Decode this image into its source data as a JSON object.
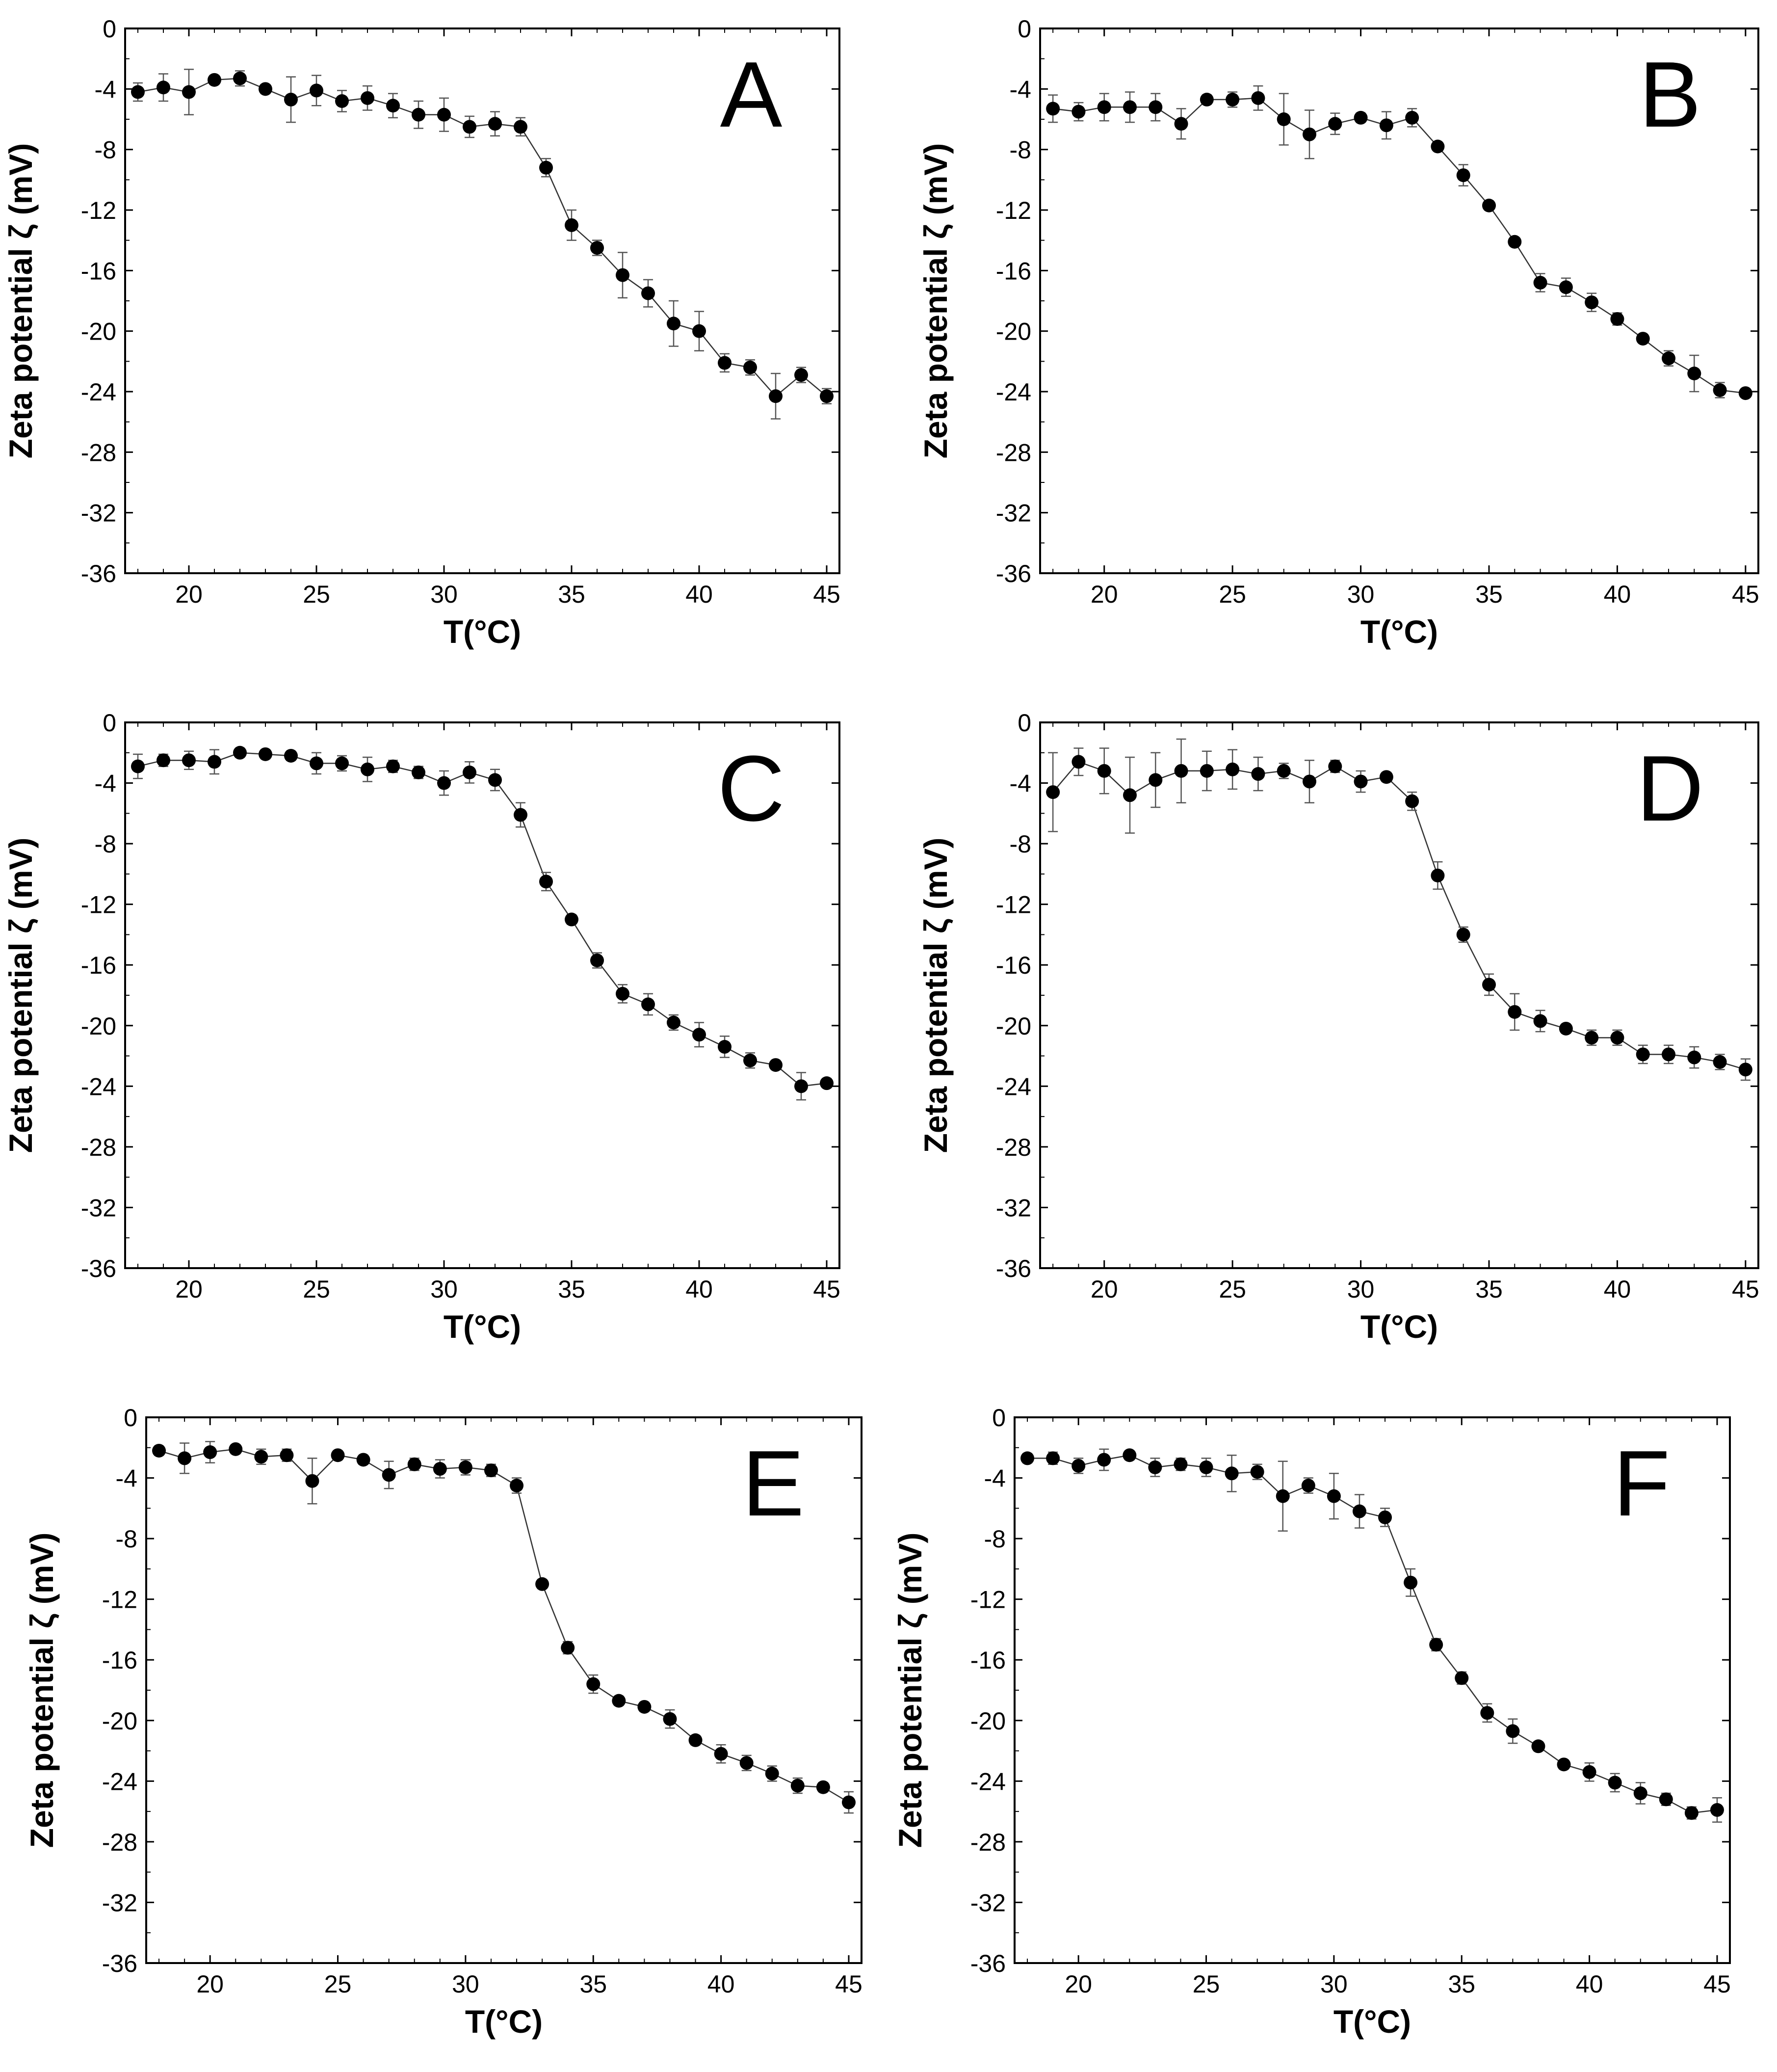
{
  "figure": {
    "description_free": true
  },
  "chart_data": [
    {
      "type": "line",
      "panel": "A",
      "xlabel": "T(°C)",
      "ylabel": "Zeta potential ζ (mV)",
      "xlim": [
        17.5,
        45.5
      ],
      "ylim": [
        -36,
        0
      ],
      "xticks": [
        20,
        25,
        30,
        35,
        40,
        45
      ],
      "yticks": [
        0,
        -4,
        -8,
        -12,
        -16,
        -20,
        -24,
        -28,
        -32,
        -36
      ],
      "x": [
        18,
        19,
        20,
        21,
        22,
        23,
        24,
        25,
        26,
        27,
        28,
        29,
        30,
        31,
        32,
        33,
        34,
        35,
        36,
        37,
        38,
        39,
        40,
        41,
        42,
        43,
        44,
        45
      ],
      "y": [
        -4.2,
        -3.9,
        -4.2,
        -3.4,
        -3.3,
        -4.0,
        -4.7,
        -4.1,
        -4.8,
        -4.6,
        -5.1,
        -5.7,
        -5.7,
        -6.5,
        -6.3,
        -6.5,
        -9.2,
        -13.0,
        -14.5,
        -16.3,
        -17.5,
        -19.5,
        -20.0,
        -22.1,
        -22.4,
        -24.3,
        -22.9,
        -24.3
      ],
      "err": [
        0.6,
        0.9,
        1.5,
        0.3,
        0.5,
        0.3,
        1.5,
        1.0,
        0.7,
        0.8,
        0.8,
        0.9,
        1.1,
        0.7,
        0.8,
        0.6,
        0.6,
        1.0,
        0.5,
        1.5,
        0.9,
        1.5,
        1.3,
        0.6,
        0.5,
        1.5,
        0.5,
        0.5
      ]
    },
    {
      "type": "line",
      "panel": "B",
      "xlabel": "T(°C)",
      "ylabel": "Zeta potential ζ (mV)",
      "xlim": [
        17.5,
        45.5
      ],
      "ylim": [
        -36,
        0
      ],
      "xticks": [
        20,
        25,
        30,
        35,
        40,
        45
      ],
      "yticks": [
        0,
        -4,
        -8,
        -12,
        -16,
        -20,
        -24,
        -28,
        -32,
        -36
      ],
      "x": [
        18,
        19,
        20,
        21,
        22,
        23,
        24,
        25,
        26,
        27,
        28,
        29,
        30,
        31,
        32,
        33,
        34,
        35,
        36,
        37,
        38,
        39,
        40,
        41,
        42,
        43,
        44,
        45
      ],
      "y": [
        -5.3,
        -5.5,
        -5.2,
        -5.2,
        -5.2,
        -6.3,
        -4.7,
        -4.7,
        -4.6,
        -6.0,
        -7.0,
        -6.3,
        -5.9,
        -6.4,
        -5.9,
        -7.8,
        -9.7,
        -11.7,
        -14.1,
        -16.8,
        -17.1,
        -18.1,
        -19.2,
        -20.5,
        -21.8,
        -22.8,
        -23.9,
        -24.1
      ],
      "err": [
        0.9,
        0.6,
        0.9,
        1.0,
        0.9,
        1.0,
        0.3,
        0.5,
        0.8,
        1.7,
        1.6,
        0.7,
        0.3,
        0.9,
        0.6,
        0.2,
        0.7,
        0.3,
        0.2,
        0.6,
        0.6,
        0.6,
        0.4,
        0.2,
        0.5,
        1.2,
        0.5,
        0.2
      ]
    },
    {
      "type": "line",
      "panel": "C",
      "xlabel": "T(°C)",
      "ylabel": "Zeta potential ζ (mV)",
      "xlim": [
        17.5,
        45.5
      ],
      "ylim": [
        -36,
        0
      ],
      "xticks": [
        20,
        25,
        30,
        35,
        40,
        45
      ],
      "yticks": [
        0,
        -4,
        -8,
        -12,
        -16,
        -20,
        -24,
        -28,
        -32,
        -36
      ],
      "x": [
        18,
        19,
        20,
        21,
        22,
        23,
        24,
        25,
        26,
        27,
        28,
        29,
        30,
        31,
        32,
        33,
        34,
        35,
        36,
        37,
        38,
        39,
        40,
        41,
        42,
        43,
        44,
        45
      ],
      "y": [
        -2.9,
        -2.5,
        -2.5,
        -2.6,
        -2.0,
        -2.1,
        -2.2,
        -2.7,
        -2.7,
        -3.1,
        -2.9,
        -3.3,
        -4.0,
        -3.3,
        -3.8,
        -6.1,
        -10.5,
        -13.0,
        -15.7,
        -17.9,
        -18.6,
        -19.8,
        -20.6,
        -21.4,
        -22.3,
        -22.6,
        -24.0,
        -23.8
      ],
      "err": [
        0.8,
        0.4,
        0.6,
        0.8,
        0.3,
        0.3,
        0.3,
        0.7,
        0.5,
        0.8,
        0.4,
        0.4,
        0.8,
        0.7,
        0.7,
        0.8,
        0.6,
        0.3,
        0.5,
        0.6,
        0.7,
        0.5,
        0.8,
        0.7,
        0.5,
        0.3,
        0.9,
        0.3
      ]
    },
    {
      "type": "line",
      "panel": "D",
      "xlabel": "T(°C)",
      "ylabel": "Zeta potential ζ (mV)",
      "xlim": [
        17.5,
        45.5
      ],
      "ylim": [
        -36,
        0
      ],
      "xticks": [
        20,
        25,
        30,
        35,
        40,
        45
      ],
      "yticks": [
        0,
        -4,
        -8,
        -12,
        -16,
        -20,
        -24,
        -28,
        -32,
        -36
      ],
      "x": [
        18,
        19,
        20,
        21,
        22,
        23,
        24,
        25,
        26,
        27,
        28,
        29,
        30,
        31,
        32,
        33,
        34,
        35,
        36,
        37,
        38,
        39,
        40,
        41,
        42,
        43,
        44,
        45
      ],
      "y": [
        -4.6,
        -2.6,
        -3.2,
        -4.8,
        -3.8,
        -3.2,
        -3.2,
        -3.1,
        -3.4,
        -3.2,
        -3.9,
        -2.9,
        -3.9,
        -3.6,
        -5.2,
        -10.1,
        -14.0,
        -17.3,
        -19.1,
        -19.7,
        -20.2,
        -20.8,
        -20.8,
        -21.9,
        -21.9,
        -22.1,
        -22.4,
        -22.9
      ],
      "err": [
        2.6,
        0.9,
        1.5,
        2.5,
        1.8,
        2.1,
        1.3,
        1.3,
        1.1,
        0.5,
        1.4,
        0.4,
        0.7,
        0.3,
        0.6,
        0.9,
        0.5,
        0.7,
        1.2,
        0.7,
        0.3,
        0.5,
        0.5,
        0.6,
        0.6,
        0.7,
        0.5,
        0.7
      ]
    },
    {
      "type": "line",
      "panel": "E",
      "xlabel": "T(°C)",
      "ylabel": "Zeta potential ζ (mV)",
      "xlim": [
        17.5,
        45.5
      ],
      "ylim": [
        -36,
        0
      ],
      "xticks": [
        20,
        25,
        30,
        35,
        40,
        45
      ],
      "yticks": [
        0,
        -4,
        -8,
        -12,
        -16,
        -20,
        -24,
        -28,
        -32,
        -36
      ],
      "x": [
        18,
        19,
        20,
        21,
        22,
        23,
        24,
        25,
        26,
        27,
        28,
        29,
        30,
        31,
        32,
        33,
        34,
        35,
        36,
        37,
        38,
        39,
        40,
        41,
        42,
        43,
        44,
        45
      ],
      "y": [
        -2.2,
        -2.7,
        -2.3,
        -2.1,
        -2.6,
        -2.5,
        -4.2,
        -2.5,
        -2.8,
        -3.8,
        -3.1,
        -3.4,
        -3.3,
        -3.5,
        -4.5,
        -11.0,
        -15.2,
        -17.6,
        -18.7,
        -19.1,
        -19.9,
        -21.3,
        -22.2,
        -22.8,
        -23.5,
        -24.3,
        -24.4,
        -25.4
      ],
      "err": [
        0.3,
        1.0,
        0.7,
        0.3,
        0.5,
        0.4,
        1.5,
        0.3,
        0.3,
        0.9,
        0.4,
        0.6,
        0.5,
        0.4,
        0.5,
        0.3,
        0.4,
        0.6,
        0.3,
        0.3,
        0.6,
        0.3,
        0.6,
        0.5,
        0.5,
        0.5,
        0.3,
        0.7
      ]
    },
    {
      "type": "line",
      "panel": "F",
      "xlabel": "T(°C)",
      "ylabel": "Zeta potential ζ (mV)",
      "xlim": [
        17.5,
        45.5
      ],
      "ylim": [
        -36,
        0
      ],
      "xticks": [
        20,
        25,
        30,
        35,
        40,
        45
      ],
      "yticks": [
        0,
        -4,
        -8,
        -12,
        -16,
        -20,
        -24,
        -28,
        -32,
        -36
      ],
      "x": [
        18,
        19,
        20,
        21,
        22,
        23,
        24,
        25,
        26,
        27,
        28,
        29,
        30,
        31,
        32,
        33,
        34,
        35,
        36,
        37,
        38,
        39,
        40,
        41,
        42,
        43,
        44,
        45
      ],
      "y": [
        -2.7,
        -2.7,
        -3.2,
        -2.8,
        -2.5,
        -3.3,
        -3.1,
        -3.3,
        -3.7,
        -3.6,
        -5.2,
        -4.5,
        -5.2,
        -6.2,
        -6.6,
        -10.9,
        -15.0,
        -17.2,
        -19.5,
        -20.7,
        -21.7,
        -22.9,
        -23.4,
        -24.1,
        -24.8,
        -25.2,
        -26.1,
        -25.9
      ],
      "err": [
        0.3,
        0.4,
        0.5,
        0.7,
        0.3,
        0.6,
        0.4,
        0.6,
        1.2,
        0.5,
        2.3,
        0.5,
        1.5,
        1.1,
        0.6,
        0.9,
        0.4,
        0.4,
        0.6,
        0.8,
        0.3,
        0.3,
        0.6,
        0.6,
        0.7,
        0.4,
        0.4,
        0.8
      ]
    }
  ]
}
